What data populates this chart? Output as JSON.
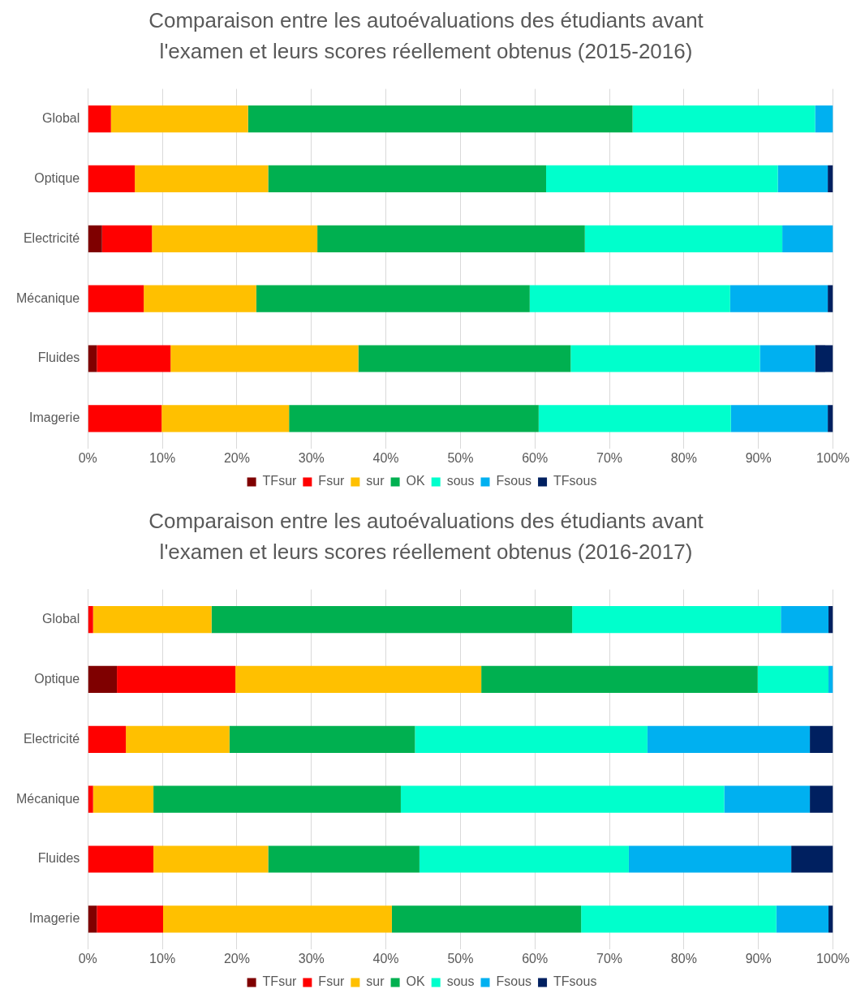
{
  "chart_data": [
    {
      "type": "bar",
      "orientation": "horizontal",
      "stacked": true,
      "title": "Comparaison entre les autoévaluations des étudiants avant l'examen et leurs scores réellement obtenus (2015-2016)",
      "categories": [
        "Global",
        "Optique",
        "Electricité",
        "Mécanique",
        "Fluides",
        "Imagerie"
      ],
      "xlim": [
        0,
        100
      ],
      "xticks": [
        {
          "value": 0,
          "label": "0%"
        },
        {
          "value": 10,
          "label": "10%"
        },
        {
          "value": 20,
          "label": "20%"
        },
        {
          "value": 30,
          "label": "30%"
        },
        {
          "value": 40,
          "label": "40%"
        },
        {
          "value": 50,
          "label": "50%"
        },
        {
          "value": 60,
          "label": "60%"
        },
        {
          "value": 70,
          "label": "70%"
        },
        {
          "value": 80,
          "label": "80%"
        },
        {
          "value": 90,
          "label": "90%"
        },
        {
          "value": 100,
          "label": "100%"
        }
      ],
      "grid": "x",
      "legend": "bottom",
      "series": [
        {
          "name": "TFsur",
          "color": "#7f0000",
          "values": [
            0,
            0,
            1.9,
            0,
            1.2,
            0
          ]
        },
        {
          "name": "Fsur",
          "color": "#ff0000",
          "values": [
            3.1,
            6.3,
            6.7,
            7.5,
            9.9,
            9.9
          ]
        },
        {
          "name": "sur",
          "color": "#ffc000",
          "values": [
            18.4,
            17.9,
            22.2,
            15.1,
            25.2,
            17.1
          ]
        },
        {
          "name": "OK",
          "color": "#00b050",
          "values": [
            51.6,
            37.3,
            35.9,
            36.7,
            28.5,
            33.5
          ]
        },
        {
          "name": "sous",
          "color": "#00ffcc",
          "values": [
            24.5,
            31.1,
            26.5,
            26.9,
            25.4,
            25.8
          ]
        },
        {
          "name": "Fsous",
          "color": "#00b0f0",
          "values": [
            2.4,
            6.7,
            6.8,
            13.1,
            7.4,
            13.0
          ]
        },
        {
          "name": "TFsous",
          "color": "#002060",
          "values": [
            0,
            0.7,
            0,
            0.7,
            2.4,
            0.7
          ]
        }
      ]
    },
    {
      "type": "bar",
      "orientation": "horizontal",
      "stacked": true,
      "title": "Comparaison entre les autoévaluations des étudiants avant l'examen et leurs scores réellement obtenus (2016-2017)",
      "categories": [
        "Global",
        "Optique",
        "Electricité",
        "Mécanique",
        "Fluides",
        "Imagerie"
      ],
      "xlim": [
        0,
        100
      ],
      "xticks": [
        {
          "value": 0,
          "label": "0%"
        },
        {
          "value": 10,
          "label": "10%"
        },
        {
          "value": 20,
          "label": "20%"
        },
        {
          "value": 30,
          "label": "30%"
        },
        {
          "value": 40,
          "label": "40%"
        },
        {
          "value": 50,
          "label": "50%"
        },
        {
          "value": 60,
          "label": "60%"
        },
        {
          "value": 70,
          "label": "70%"
        },
        {
          "value": 80,
          "label": "80%"
        },
        {
          "value": 90,
          "label": "90%"
        },
        {
          "value": 100,
          "label": "100%"
        }
      ],
      "grid": "x",
      "legend": "bottom",
      "series": [
        {
          "name": "TFsur",
          "color": "#7f0000",
          "values": [
            0,
            3.9,
            0,
            0,
            0,
            1.2
          ]
        },
        {
          "name": "Fsur",
          "color": "#ff0000",
          "values": [
            0.7,
            15.9,
            5.1,
            0.7,
            8.8,
            8.9
          ]
        },
        {
          "name": "sur",
          "color": "#ffc000",
          "values": [
            15.9,
            33.0,
            13.9,
            8.1,
            15.4,
            30.7
          ]
        },
        {
          "name": "OK",
          "color": "#00b050",
          "values": [
            48.4,
            37.1,
            24.9,
            33.2,
            20.3,
            25.4
          ]
        },
        {
          "name": "sous",
          "color": "#00ffcc",
          "values": [
            28.0,
            9.5,
            31.2,
            43.4,
            28.1,
            26.2
          ]
        },
        {
          "name": "Fsous",
          "color": "#00b0f0",
          "values": [
            6.4,
            0.6,
            21.8,
            11.5,
            21.8,
            7.0
          ]
        },
        {
          "name": "TFsous",
          "color": "#002060",
          "values": [
            0.6,
            0,
            3.1,
            3.1,
            5.6,
            0.6
          ]
        }
      ]
    }
  ]
}
